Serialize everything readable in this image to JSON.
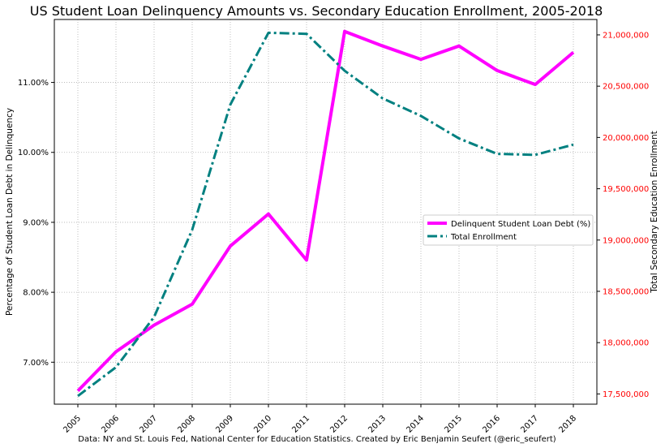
{
  "chart_data": {
    "type": "line",
    "title": "US Student Loan Delinquency Amounts vs. Secondary Education Enrollment, 2005-2018",
    "source_note": "Data: NY and St. Louis Fed, National Center for Education Statistics. Created by Eric Benjamin Seufert (@eric_seufert)",
    "x": [
      "2005",
      "2006",
      "2007",
      "2008",
      "2009",
      "2010",
      "2011",
      "2012",
      "2013",
      "2014",
      "2015",
      "2016",
      "2017",
      "2018"
    ],
    "ylabel_left": "Percentage of Student Loan Debt in Delinquency",
    "ylabel_right": "Total Secondary Education Enrollment",
    "ylim_left": [
      6.4,
      11.9
    ],
    "ylim_right": [
      17400000,
      21150000
    ],
    "yticks_left": [
      7.0,
      8.0,
      9.0,
      10.0,
      11.0
    ],
    "yticks_left_labels": [
      "7.00%",
      "8.00%",
      "9.00%",
      "10.00%",
      "11.00%"
    ],
    "yticks_right": [
      17500000,
      18000000,
      18500000,
      19000000,
      19500000,
      20000000,
      20500000,
      21000000
    ],
    "yticks_right_labels": [
      "17,500,000",
      "18,000,000",
      "18,500,000",
      "19,000,000",
      "19,500,000",
      "20,000,000",
      "20,500,000",
      "21,000,000"
    ],
    "grid": true,
    "legend_placement": "center-right",
    "series": [
      {
        "name": "Delinquent Student Loan Debt (%)",
        "axis": "left",
        "color": "#ff00ff",
        "style": "solid",
        "values": [
          6.59,
          7.15,
          7.53,
          7.83,
          8.66,
          9.12,
          8.46,
          11.73,
          11.52,
          11.33,
          11.52,
          11.17,
          10.97,
          11.43
        ]
      },
      {
        "name": "Total Enrollment",
        "axis": "right",
        "color": "#008080",
        "style": "dashdot",
        "values": [
          17480000,
          17760000,
          18250000,
          19100000,
          20320000,
          21020000,
          21010000,
          20650000,
          20380000,
          20210000,
          19990000,
          19840000,
          19830000,
          19930000
        ]
      }
    ]
  }
}
